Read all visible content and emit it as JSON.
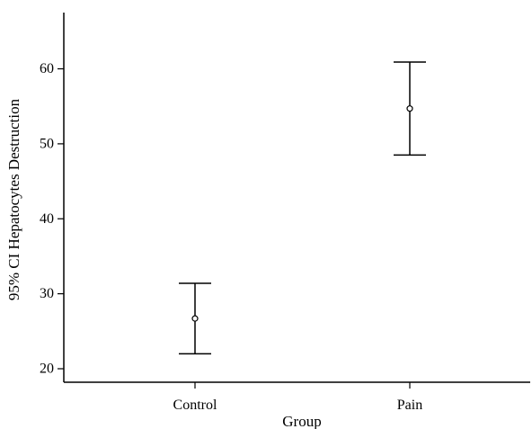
{
  "chart_data": {
    "type": "scatter",
    "title": "",
    "xlabel": "Group",
    "ylabel": "95% CI Hepatocytes Destruction",
    "categories": [
      "Control",
      "Pain"
    ],
    "mean": [
      26.7,
      54.7
    ],
    "lower": [
      22.0,
      48.5
    ],
    "upper": [
      31.4,
      60.9
    ],
    "y_ticks": [
      20,
      30,
      40,
      50,
      60
    ],
    "ylim": [
      18.2,
      67.5
    ],
    "grid": false,
    "legend": "none"
  }
}
